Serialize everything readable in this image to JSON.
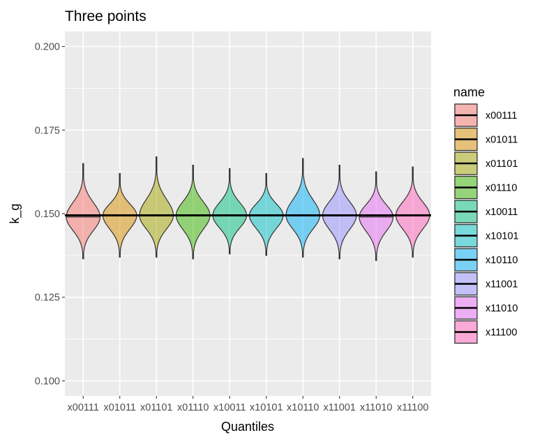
{
  "chart_data": {
    "type": "violin",
    "title": "Three points",
    "xlabel": "Quantiles",
    "ylabel": "k_g",
    "ylim": [
      0.0955,
      0.2045
    ],
    "yticks": [
      0.1,
      0.125,
      0.15,
      0.175,
      0.2
    ],
    "ytick_labels": [
      "0.100",
      "0.125",
      "0.150",
      "0.175",
      "0.200"
    ],
    "hline": 0.1495,
    "legend_title": "name",
    "legend_position": "right",
    "grid": true,
    "categories": [
      "x00111",
      "x01011",
      "x01101",
      "x01110",
      "x10011",
      "x10101",
      "x10110",
      "x11001",
      "x11010",
      "x11100"
    ],
    "series": [
      {
        "name": "x00111",
        "color": "#F8766D",
        "ymin": 0.1365,
        "ymax": 0.165,
        "median": 0.149
      },
      {
        "name": "x01011",
        "color": "#D89000",
        "ymin": 0.137,
        "ymax": 0.162,
        "median": 0.1495
      },
      {
        "name": "x01101",
        "color": "#A3A500",
        "ymin": 0.137,
        "ymax": 0.167,
        "median": 0.1495
      },
      {
        "name": "x01110",
        "color": "#39B600",
        "ymin": 0.1365,
        "ymax": 0.1645,
        "median": 0.1495
      },
      {
        "name": "x10011",
        "color": "#00BF7D",
        "ymin": 0.138,
        "ymax": 0.1635,
        "median": 0.1495
      },
      {
        "name": "x10101",
        "color": "#00BFC4",
        "ymin": 0.1375,
        "ymax": 0.162,
        "median": 0.1495
      },
      {
        "name": "x10110",
        "color": "#00B0F6",
        "ymin": 0.137,
        "ymax": 0.1665,
        "median": 0.1495
      },
      {
        "name": "x11001",
        "color": "#9590FF",
        "ymin": 0.1365,
        "ymax": 0.1645,
        "median": 0.1495
      },
      {
        "name": "x11010",
        "color": "#E76BF3",
        "ymin": 0.136,
        "ymax": 0.1625,
        "median": 0.149
      },
      {
        "name": "x11100",
        "color": "#FF62BC",
        "ymin": 0.137,
        "ymax": 0.164,
        "median": 0.1495
      }
    ]
  }
}
